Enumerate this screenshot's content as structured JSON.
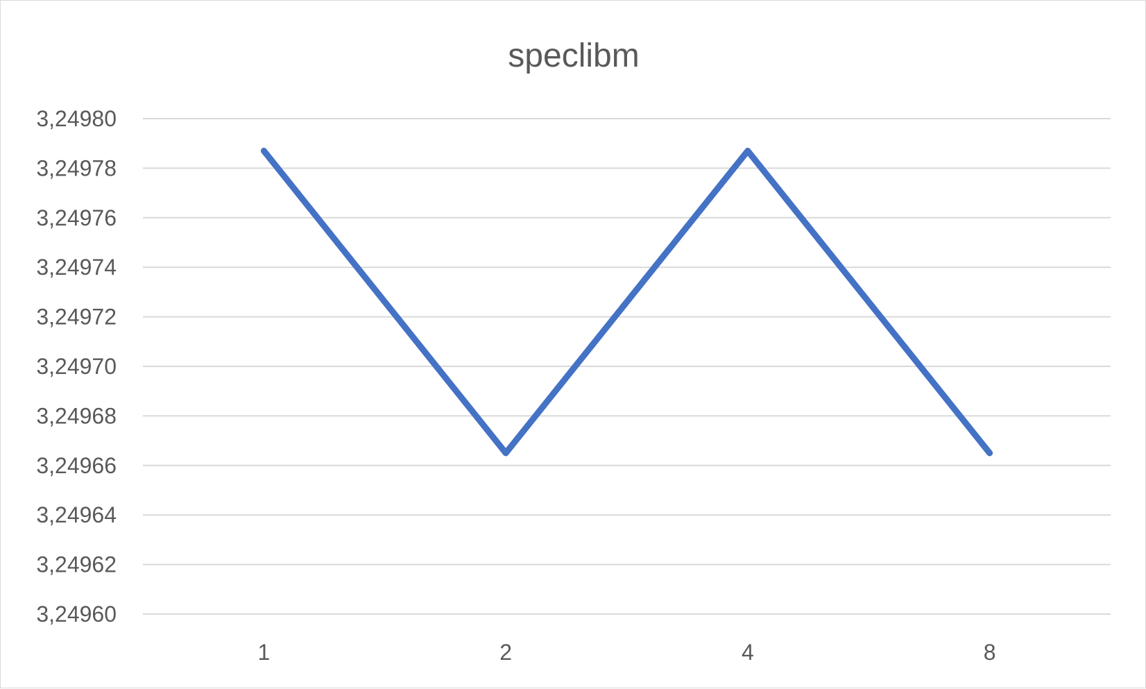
{
  "chart_data": {
    "type": "line",
    "title": "speclibm",
    "xlabel": "",
    "ylabel": "",
    "categories": [
      "1",
      "2",
      "4",
      "8"
    ],
    "series": [
      {
        "name": "speclibm",
        "values": [
          3.249787,
          3.249665,
          3.249787,
          3.249665
        ],
        "color": "#4472C4"
      }
    ],
    "ylim": [
      3.2496,
      3.2498
    ],
    "yticks": [
      3.2496,
      3.24962,
      3.24964,
      3.24966,
      3.24968,
      3.2497,
      3.24972,
      3.24974,
      3.24976,
      3.24978,
      3.2498
    ],
    "ytick_labels": [
      "3,24960",
      "3,24962",
      "3,24964",
      "3,24966",
      "3,24968",
      "3,24970",
      "3,24972",
      "3,24974",
      "3,24976",
      "3,24978",
      "3,24980"
    ],
    "grid": true,
    "legend": "none"
  }
}
